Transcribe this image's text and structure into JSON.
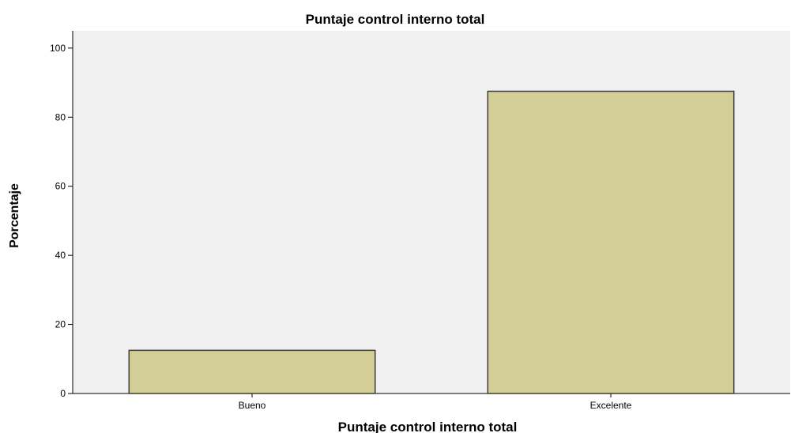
{
  "chart_data": {
    "type": "bar",
    "title": "Puntaje control interno total",
    "xlabel": "Puntaje control interno total",
    "ylabel": "Porcentaje",
    "categories": [
      "Bueno",
      "Excelente"
    ],
    "values": [
      12.5,
      87.5
    ],
    "ylim": [
      0,
      105
    ],
    "yticks": [
      0,
      20,
      40,
      60,
      80,
      100
    ],
    "grid": false,
    "colors": {
      "plot_background": "#f0f0f0",
      "bar_fill": "#d3cd97",
      "bar_stroke": "#3c3c3c",
      "axis": "#000000"
    }
  }
}
